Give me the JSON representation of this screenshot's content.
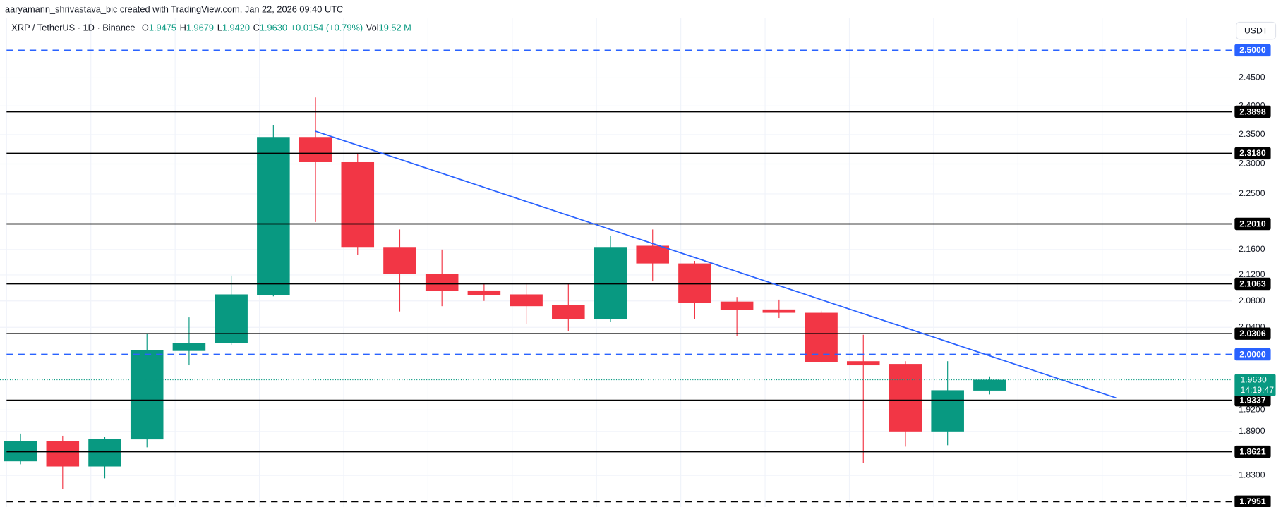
{
  "header": {
    "attribution": "aaryamann_shrivastava_bic created with TradingView.com, Jan 22, 2026 09:40 UTC"
  },
  "chart_data": {
    "type": "candlestick",
    "symbol": "XRP / TetherUS · 1D · Binance",
    "ohlc_legend": [
      {
        "key": "O",
        "value": 1.9475,
        "label": "1.9475"
      },
      {
        "key": "H",
        "value": 1.9679,
        "label": "1.9679"
      },
      {
        "key": "L",
        "value": 1.942,
        "label": "1.9420"
      },
      {
        "key": "C",
        "value": 1.963,
        "label": "1.9630"
      }
    ],
    "change": "+0.0154 (+0.79%)",
    "volume_key": "Vol",
    "volume": "19.52 M",
    "currency": "USDT",
    "log_scale": true,
    "grid": true,
    "up_color": "#089981",
    "down_color": "#f23645",
    "ylim": [
      1.788,
      2.56
    ],
    "yticks": [
      {
        "value": 2.45,
        "label": "2.4500"
      },
      {
        "value": 2.4,
        "label": "2.4000"
      },
      {
        "value": 2.35,
        "label": "2.3500"
      },
      {
        "value": 2.3,
        "label": "2.3000"
      },
      {
        "value": 2.25,
        "label": "2.2500"
      },
      {
        "value": 2.16,
        "label": "2.1600"
      },
      {
        "value": 2.12,
        "label": "2.1200"
      },
      {
        "value": 2.08,
        "label": "2.0800"
      },
      {
        "value": 2.04,
        "label": "2.0400"
      },
      {
        "value": 1.92,
        "label": "1.9200"
      },
      {
        "value": 1.89,
        "label": "1.8900"
      },
      {
        "value": 1.83,
        "label": "1.8300"
      }
    ],
    "candles": [
      {
        "open": 1.849,
        "high": 1.887,
        "low": 1.845,
        "close": 1.877
      },
      {
        "open": 1.877,
        "high": 1.884,
        "low": 1.812,
        "close": 1.842
      },
      {
        "open": 1.842,
        "high": 1.882,
        "low": 1.826,
        "close": 1.88
      },
      {
        "open": 1.879,
        "high": 2.03,
        "low": 1.868,
        "close": 2.006
      },
      {
        "open": 2.005,
        "high": 2.055,
        "low": 1.984,
        "close": 2.017
      },
      {
        "open": 2.017,
        "high": 2.119,
        "low": 2.014,
        "close": 2.09
      },
      {
        "open": 2.089,
        "high": 2.367,
        "low": 2.087,
        "close": 2.346
      },
      {
        "open": 2.346,
        "high": 2.415,
        "low": 2.204,
        "close": 2.303
      },
      {
        "open": 2.303,
        "high": 2.317,
        "low": 2.151,
        "close": 2.164
      },
      {
        "open": 2.164,
        "high": 2.192,
        "low": 2.064,
        "close": 2.122
      },
      {
        "open": 2.122,
        "high": 2.16,
        "low": 2.072,
        "close": 2.095
      },
      {
        "open": 2.096,
        "high": 2.106,
        "low": 2.08,
        "close": 2.089
      },
      {
        "open": 2.09,
        "high": 2.108,
        "low": 2.045,
        "close": 2.072
      },
      {
        "open": 2.074,
        "high": 2.106,
        "low": 2.034,
        "close": 2.052
      },
      {
        "open": 2.052,
        "high": 2.182,
        "low": 2.048,
        "close": 2.164
      },
      {
        "open": 2.166,
        "high": 2.192,
        "low": 2.11,
        "close": 2.138
      },
      {
        "open": 2.138,
        "high": 2.142,
        "low": 2.052,
        "close": 2.077
      },
      {
        "open": 2.079,
        "high": 2.086,
        "low": 2.027,
        "close": 2.066
      },
      {
        "open": 2.067,
        "high": 2.082,
        "low": 2.054,
        "close": 2.062
      },
      {
        "open": 2.062,
        "high": 2.065,
        "low": 1.988,
        "close": 1.989
      },
      {
        "open": 1.99,
        "high": 2.029,
        "low": 1.847,
        "close": 1.984
      },
      {
        "open": 1.986,
        "high": 1.99,
        "low": 1.869,
        "close": 1.89
      },
      {
        "open": 1.89,
        "high": 1.99,
        "low": 1.871,
        "close": 1.948
      },
      {
        "open": 1.9475,
        "high": 1.9679,
        "low": 1.942,
        "close": 1.963
      }
    ],
    "levels": [
      {
        "value": 2.5,
        "label": "2.5000",
        "style": "dashed",
        "color": "#2962ff"
      },
      {
        "value": 2.3898,
        "label": "2.3898",
        "style": "solid",
        "color": "#000000"
      },
      {
        "value": 2.318,
        "label": "2.3180",
        "style": "solid",
        "color": "#000000"
      },
      {
        "value": 2.201,
        "label": "2.2010",
        "style": "solid",
        "color": "#000000"
      },
      {
        "value": 2.1063,
        "label": "2.1063",
        "style": "solid",
        "color": "#000000"
      },
      {
        "value": 2.0306,
        "label": "2.0306",
        "style": "solid",
        "color": "#000000"
      },
      {
        "value": 2,
        "label": "2.0000",
        "style": "dashed",
        "color": "#2962ff"
      },
      {
        "value": 1.9337,
        "label": "1.9337",
        "style": "solid",
        "color": "#000000"
      },
      {
        "value": 1.8621,
        "label": "1.8621",
        "style": "solid",
        "color": "#000000"
      },
      {
        "value": 1.7951,
        "label": "1.7951",
        "style": "dashed",
        "color": "#000000"
      }
    ],
    "last_price": {
      "value": 1.963,
      "label": "1.9630",
      "countdown": "14:19:47",
      "color": "#089981"
    },
    "trendline": {
      "color": "#2962ff",
      "start": {
        "index": 7,
        "value": 2.356
      },
      "end": {
        "index": 26,
        "value": 1.937
      }
    }
  }
}
